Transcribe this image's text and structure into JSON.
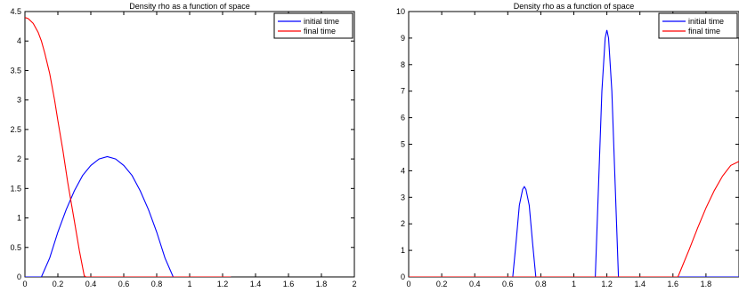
{
  "chart_data": [
    {
      "type": "line",
      "title": "Density rho as a function of space",
      "xlim": [
        0,
        2
      ],
      "ylim": [
        0,
        4.5
      ],
      "xticks": [
        "0",
        "0.2",
        "0.4",
        "0.6",
        "0.8",
        "1",
        "1.2",
        "1.4",
        "1.6",
        "1.8",
        "2"
      ],
      "yticks": [
        "0",
        "0.5",
        "1",
        "1.5",
        "2",
        "2.5",
        "3",
        "3.5",
        "4",
        "4.5"
      ],
      "grid": false,
      "legend_position": "top-right",
      "series": [
        {
          "name": "initial time",
          "color": "#0000ff",
          "x": [
            0,
            0.1,
            0.15,
            0.2,
            0.25,
            0.3,
            0.35,
            0.4,
            0.45,
            0.5,
            0.55,
            0.6,
            0.65,
            0.7,
            0.75,
            0.8,
            0.85,
            0.9,
            1.0,
            1.25
          ],
          "y": [
            0,
            0,
            0.32,
            0.76,
            1.14,
            1.46,
            1.72,
            1.89,
            2.0,
            2.04,
            2.0,
            1.89,
            1.72,
            1.46,
            1.14,
            0.76,
            0.32,
            0,
            0,
            0
          ]
        },
        {
          "name": "final time",
          "color": "#ff0000",
          "x": [
            0,
            0.02,
            0.05,
            0.08,
            0.1,
            0.12,
            0.15,
            0.18,
            0.2,
            0.23,
            0.26,
            0.3,
            0.33,
            0.36,
            0.37,
            0.5,
            1.0,
            1.25
          ],
          "y": [
            4.4,
            4.38,
            4.3,
            4.15,
            4.0,
            3.8,
            3.45,
            3.0,
            2.65,
            2.15,
            1.6,
            0.95,
            0.45,
            0.02,
            0,
            0,
            0,
            0
          ]
        }
      ]
    },
    {
      "type": "line",
      "title": "Density rho as a function of space",
      "xlim": [
        0,
        2
      ],
      "ylim": [
        0,
        10
      ],
      "xticks": [
        "0",
        "0.2",
        "0.4",
        "0.6",
        "0.8",
        "1",
        "1.2",
        "1.4",
        "1.6",
        "1.8"
      ],
      "yticks": [
        "0",
        "1",
        "2",
        "3",
        "4",
        "5",
        "6",
        "7",
        "8",
        "9",
        "10"
      ],
      "grid": false,
      "legend_position": "top-right",
      "series": [
        {
          "name": "initial time",
          "color": "#0000ff",
          "x": [
            0,
            0.63,
            0.65,
            0.67,
            0.69,
            0.7,
            0.71,
            0.73,
            0.75,
            0.77,
            1.13,
            1.15,
            1.17,
            1.19,
            1.2,
            1.21,
            1.23,
            1.25,
            1.27,
            2.0
          ],
          "y": [
            0,
            0,
            1.3,
            2.7,
            3.3,
            3.4,
            3.3,
            2.7,
            1.3,
            0,
            0,
            3.5,
            7.0,
            9.0,
            9.3,
            9.0,
            7.0,
            3.5,
            0,
            0
          ]
        },
        {
          "name": "final time",
          "color": "#ff0000",
          "x": [
            0,
            1.63,
            1.65,
            1.7,
            1.75,
            1.8,
            1.85,
            1.9,
            1.95,
            2.0
          ],
          "y": [
            0,
            0,
            0.3,
            1.05,
            1.85,
            2.6,
            3.25,
            3.8,
            4.2,
            4.35
          ]
        }
      ]
    }
  ]
}
